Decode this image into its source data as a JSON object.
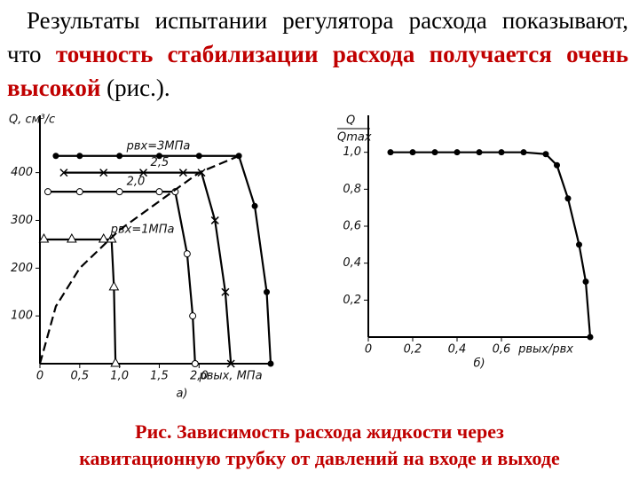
{
  "text": {
    "part1": "Результаты испытании регулятора расхода показывают, что",
    "part2": "точность стабилизации расхода получается очень высокой",
    "part3": "(рис.)."
  },
  "caption": [
    "Рис. Зависимость расхода жидкости через",
    "кавитационную трубку от давлений на входе и выходе"
  ],
  "chart_data": [
    {
      "type": "line",
      "panel": "а)",
      "ylabel": "Q, см³/с",
      "xlabel": "pвых, МПа",
      "xlim": [
        0,
        2.9
      ],
      "ylim": [
        0,
        520
      ],
      "xticks": [
        0,
        {
          "value": 0.5,
          "label": "0,5"
        },
        {
          "value": 1,
          "label": "1,0"
        },
        {
          "value": 1.5,
          "label": "1,5"
        },
        {
          "value": 2,
          "label": "2,0"
        }
      ],
      "yticks": [
        100,
        200,
        300,
        400
      ],
      "series": [
        {
          "name": "pвх=3МПа",
          "marker": "dot",
          "x": [
            0.2,
            0.5,
            1.0,
            1.5,
            2.0,
            2.5,
            2.7,
            2.85,
            2.9
          ],
          "values": [
            435,
            435,
            435,
            435,
            435,
            435,
            330,
            150,
            0
          ]
        },
        {
          "name": "2,5",
          "marker": "x",
          "x": [
            0.3,
            0.8,
            1.3,
            1.8,
            2.03,
            2.2,
            2.33,
            2.4
          ],
          "values": [
            400,
            400,
            400,
            400,
            400,
            300,
            150,
            0
          ]
        },
        {
          "name": "2,0",
          "marker": "circle",
          "x": [
            0.1,
            0.5,
            1.0,
            1.5,
            1.7,
            1.85,
            1.92,
            1.95
          ],
          "values": [
            360,
            360,
            360,
            360,
            360,
            230,
            100,
            0
          ]
        },
        {
          "name": "pвх=1МПа",
          "marker": "triangle",
          "x": [
            0.05,
            0.4,
            0.8,
            0.9,
            0.93,
            0.95
          ],
          "values": [
            260,
            260,
            260,
            260,
            160,
            0
          ]
        },
        {
          "dash": true,
          "x": [
            0,
            0.2,
            0.5,
            1.0,
            1.5,
            2.0,
            2.5
          ],
          "values": [
            0,
            120,
            200,
            280,
            340,
            400,
            435
          ]
        }
      ]
    },
    {
      "type": "line",
      "panel": "б)",
      "ylabel_num": "Q",
      "ylabel_den": "Qmax",
      "xlabel": "pвых/pвх",
      "xlim": [
        0,
        1
      ],
      "ylim": [
        0,
        1.2
      ],
      "xticks": [
        0,
        {
          "value": 0.2,
          "label": "0,2"
        },
        {
          "value": 0.4,
          "label": "0,4"
        },
        {
          "value": 0.6,
          "label": "0,6"
        }
      ],
      "yticks": [
        {
          "value": 0.2,
          "label": "0,2"
        },
        {
          "value": 0.4,
          "label": "0,4"
        },
        {
          "value": 0.6,
          "label": "0,6"
        },
        {
          "value": 0.8,
          "label": "0,8"
        },
        {
          "value": 1,
          "label": "1,0"
        }
      ],
      "series": [
        {
          "marker": "dot",
          "x": [
            0.1,
            0.2,
            0.3,
            0.4,
            0.5,
            0.6,
            0.7,
            0.8,
            0.85,
            0.9,
            0.95,
            0.98,
            1.0
          ],
          "values": [
            1,
            1,
            1,
            1,
            1,
            1,
            1,
            0.99,
            0.93,
            0.75,
            0.5,
            0.3,
            0
          ]
        }
      ]
    }
  ]
}
